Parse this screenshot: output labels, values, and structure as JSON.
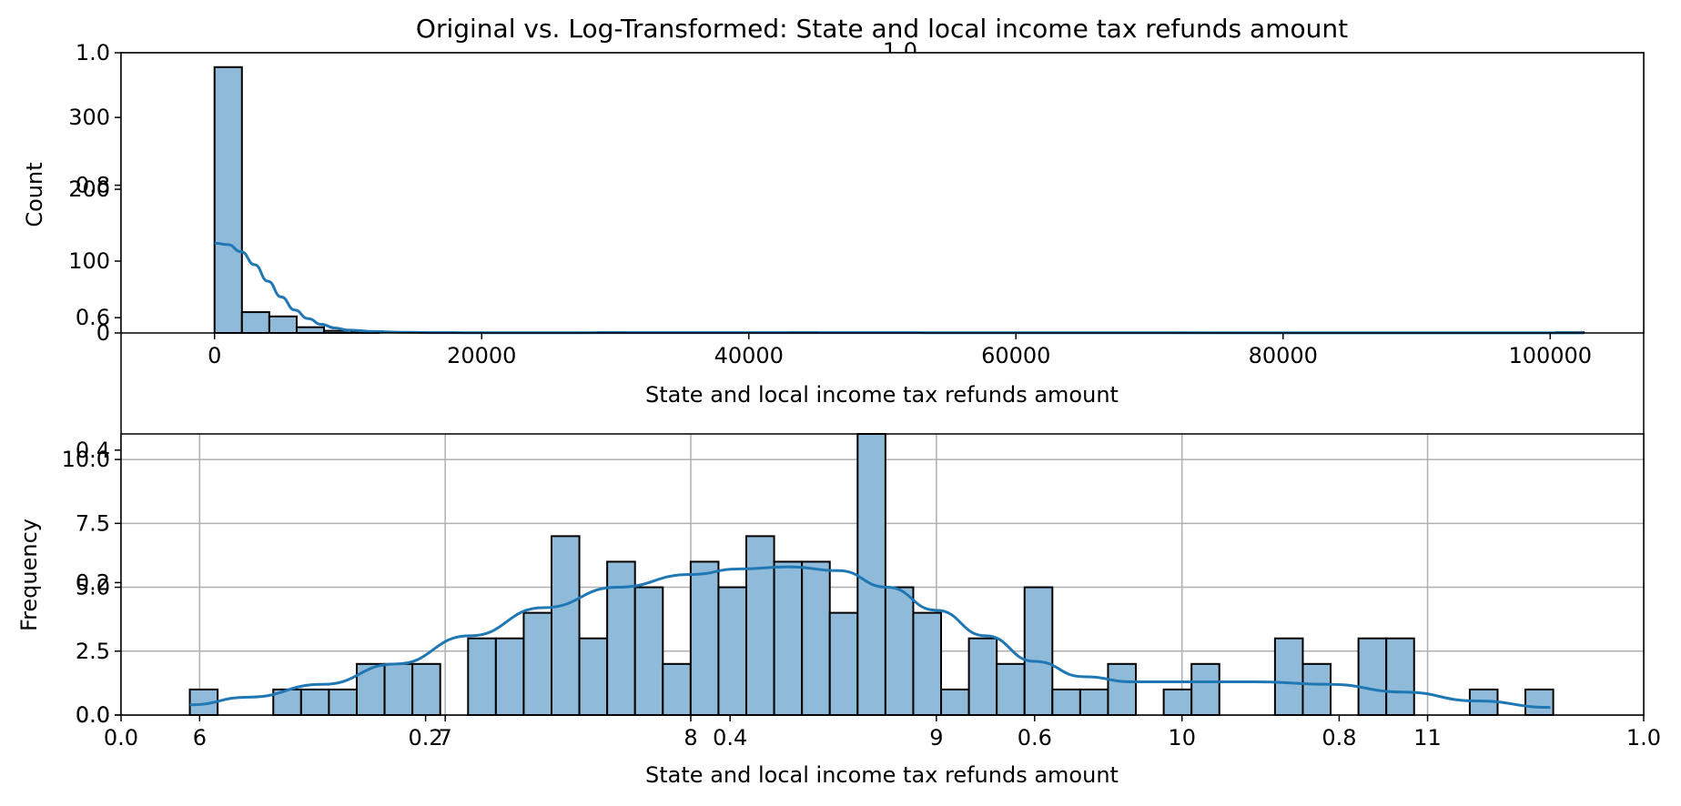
{
  "title": "Original vs. Log-Transformed: State and local income tax refunds amount",
  "colors": {
    "bar_fill": "#8fbad9",
    "bar_edge": "#000000",
    "kde_line": "#1f77b4",
    "grid": "#b0b0b0"
  },
  "ghost_axes": {
    "title": "1.0",
    "y_ticks": [
      "0.0",
      "0.2",
      "0.4",
      "0.6",
      "0.8",
      "1.0"
    ],
    "x_ticks": [
      "0.0",
      "0.2",
      "0.4",
      "0.6",
      "0.8",
      "1.0"
    ]
  },
  "chart_data": [
    {
      "type": "bar",
      "name": "original",
      "xlabel": "State and local income tax refunds amount",
      "ylabel": "Count",
      "xlim": [
        -7000,
        107000
      ],
      "ylim": [
        0,
        390
      ],
      "x_ticks": [
        0,
        20000,
        40000,
        60000,
        80000,
        100000
      ],
      "x_tick_labels": [
        "0",
        "20000",
        "40000",
        "60000",
        "80000",
        "100000"
      ],
      "y_ticks": [
        0,
        100,
        200,
        300
      ],
      "y_tick_labels": [
        "0",
        "100",
        "200",
        "300"
      ],
      "grid": false,
      "bins": [
        {
          "x0": 0,
          "x1": 2050,
          "count": 370
        },
        {
          "x0": 2050,
          "x1": 4100,
          "count": 29
        },
        {
          "x0": 4100,
          "x1": 6150,
          "count": 23
        },
        {
          "x0": 6150,
          "x1": 8200,
          "count": 8
        },
        {
          "x0": 8200,
          "x1": 10250,
          "count": 3
        },
        {
          "x0": 10250,
          "x1": 12300,
          "count": 1
        },
        {
          "x0": 28700,
          "x1": 30750,
          "count": 1
        },
        {
          "x0": 43050,
          "x1": 45100,
          "count": 1
        },
        {
          "x0": 100450,
          "x1": 102500,
          "count": 1
        }
      ],
      "kde": {
        "x": [
          0,
          1000,
          2000,
          3000,
          4000,
          5000,
          6000,
          7000,
          8000,
          9000,
          10000,
          12000,
          14000,
          16000,
          20000,
          30000,
          45000,
          60000,
          80000,
          102500
        ],
        "y": [
          125,
          123,
          113,
          95,
          72,
          50,
          32,
          20,
          12,
          7,
          4,
          2,
          1,
          0.5,
          0.3,
          0.4,
          0.5,
          0.3,
          0.2,
          0.1
        ]
      }
    },
    {
      "type": "bar",
      "name": "log-transformed",
      "xlabel": "State and local income tax refunds amount",
      "ylabel": "Frequency",
      "xlim": [
        5.68,
        11.88
      ],
      "ylim": [
        0,
        11
      ],
      "x_ticks": [
        6,
        7,
        8,
        9,
        10,
        11
      ],
      "x_tick_labels": [
        "6",
        "7",
        "8",
        "9",
        "10",
        "11"
      ],
      "y_ticks": [
        0,
        2.5,
        5,
        7.5,
        10
      ],
      "y_tick_labels": [
        "0.0",
        "2.5",
        "5.0",
        "7.5",
        "10.0"
      ],
      "grid": true,
      "bin_start": 5.96,
      "bin_width": 0.1133,
      "counts": [
        1,
        0,
        0,
        1,
        1,
        1,
        2,
        2,
        2,
        0,
        3,
        3,
        4,
        7,
        3,
        6,
        5,
        2,
        6,
        5,
        7,
        6,
        6,
        4,
        11,
        5,
        4,
        1,
        3,
        2,
        5,
        1,
        1,
        2,
        0,
        1,
        2,
        0,
        0,
        3,
        2,
        0,
        3,
        3,
        0,
        0,
        1,
        0,
        1
      ],
      "kde": {
        "x": [
          5.96,
          6.2,
          6.5,
          6.8,
          7.1,
          7.4,
          7.7,
          8.0,
          8.2,
          8.4,
          8.6,
          8.8,
          9.0,
          9.2,
          9.4,
          9.6,
          9.8,
          10.0,
          10.3,
          10.6,
          10.9,
          11.2,
          11.5
        ],
        "y": [
          0.4,
          0.7,
          1.2,
          2.0,
          3.1,
          4.2,
          5.0,
          5.5,
          5.72,
          5.8,
          5.65,
          5.0,
          4.1,
          3.1,
          2.1,
          1.5,
          1.3,
          1.3,
          1.3,
          1.2,
          0.9,
          0.55,
          0.3
        ]
      }
    }
  ]
}
